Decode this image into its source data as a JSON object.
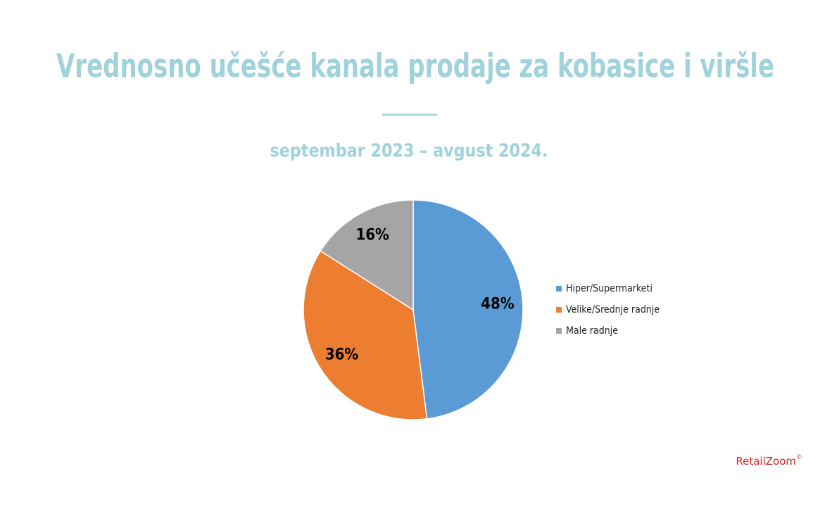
{
  "chart_data": {
    "type": "pie",
    "title": "Vrednosno učešće kanala prodaje za kobasice i viršle",
    "subtitle": "septembar 2023 – avgust 2024.",
    "categories": [
      "Hiper/Supermarketi",
      "Velike/Srednje radnje",
      "Male radnje"
    ],
    "values": [
      48,
      36,
      16
    ],
    "value_labels": [
      "48%",
      "36%",
      "16%"
    ],
    "colors": [
      "#5b9bd5",
      "#ed7d31",
      "#a5a5a5"
    ],
    "legend": "right"
  },
  "brand": [
    "Retail",
    "Zoom",
    "©"
  ]
}
